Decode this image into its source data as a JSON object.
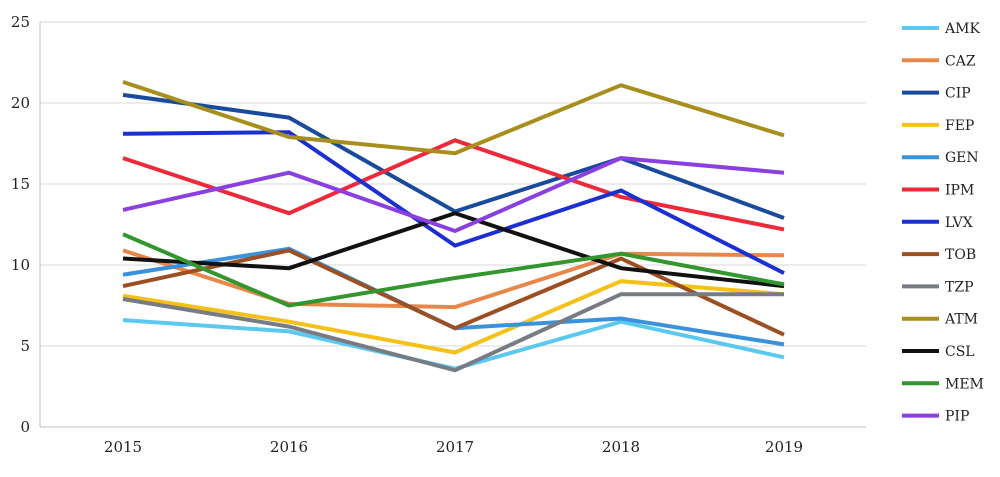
{
  "chart_data": {
    "type": "line",
    "title": "",
    "xlabel": "",
    "ylabel": "",
    "categories": [
      "2015",
      "2016",
      "2017",
      "2018",
      "2019"
    ],
    "ylim": [
      0,
      25
    ],
    "yticks": [
      0,
      5,
      10,
      15,
      20,
      25
    ],
    "grid": "horizontal",
    "legend_position": "right",
    "series": [
      {
        "name": "AMK",
        "color": "#5bc8f0",
        "values": [
          6.6,
          5.9,
          3.6,
          6.5,
          4.3
        ]
      },
      {
        "name": "CAZ",
        "color": "#e8874a",
        "values": [
          10.9,
          7.6,
          7.4,
          10.7,
          10.6
        ]
      },
      {
        "name": "CIP",
        "color": "#1a4a9c",
        "values": [
          20.5,
          19.1,
          13.3,
          16.6,
          12.9
        ]
      },
      {
        "name": "FEP",
        "color": "#f5c018",
        "values": [
          8.1,
          6.5,
          4.6,
          9.0,
          8.2
        ]
      },
      {
        "name": "GEN",
        "color": "#3a92dc",
        "values": [
          9.4,
          11.0,
          6.1,
          6.7,
          5.1
        ]
      },
      {
        "name": "IPM",
        "color": "#ee2a3a",
        "values": [
          16.6,
          13.2,
          17.7,
          14.2,
          12.2
        ]
      },
      {
        "name": "LVX",
        "color": "#1c2fd0",
        "values": [
          18.1,
          18.2,
          11.2,
          14.6,
          9.5
        ]
      },
      {
        "name": "TOB",
        "color": "#9c4f22",
        "values": [
          8.7,
          10.9,
          6.1,
          10.4,
          5.7
        ]
      },
      {
        "name": "TZP",
        "color": "#777c84",
        "values": [
          7.9,
          6.2,
          3.5,
          8.2,
          8.2
        ]
      },
      {
        "name": "ATM",
        "color": "#a88e1c",
        "values": [
          21.3,
          17.9,
          16.9,
          21.1,
          18.0
        ]
      },
      {
        "name": "CSL",
        "color": "#111111",
        "values": [
          10.4,
          9.8,
          13.2,
          9.8,
          8.7
        ]
      },
      {
        "name": "MEM",
        "color": "#33962e",
        "values": [
          11.9,
          7.5,
          9.2,
          10.7,
          8.8
        ]
      },
      {
        "name": "PIP",
        "color": "#8a40e0",
        "values": [
          13.4,
          15.7,
          12.1,
          16.6,
          15.7
        ]
      }
    ]
  }
}
